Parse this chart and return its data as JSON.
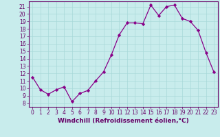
{
  "x": [
    0,
    1,
    2,
    3,
    4,
    5,
    6,
    7,
    8,
    9,
    10,
    11,
    12,
    13,
    14,
    15,
    16,
    17,
    18,
    19,
    20,
    21,
    22,
    23
  ],
  "y": [
    11.5,
    9.8,
    9.2,
    9.8,
    10.2,
    8.2,
    9.3,
    9.7,
    11.0,
    12.2,
    14.5,
    17.2,
    18.8,
    18.8,
    18.7,
    21.2,
    19.8,
    21.0,
    21.2,
    19.4,
    19.0,
    17.8,
    14.8,
    12.2
  ],
  "line_color": "#880088",
  "marker": "D",
  "markersize": 2.2,
  "linewidth": 0.9,
  "xlabel": "Windchill (Refroidissement éolien,°C)",
  "xlabel_fontsize": 6.5,
  "bg_color": "#c8ecec",
  "grid_color": "#a8d8d8",
  "xlim": [
    -0.5,
    23.5
  ],
  "ylim": [
    7.5,
    21.7
  ],
  "yticks": [
    8,
    9,
    10,
    11,
    12,
    13,
    14,
    15,
    16,
    17,
    18,
    19,
    20,
    21
  ],
  "xticks": [
    0,
    1,
    2,
    3,
    4,
    5,
    6,
    7,
    8,
    9,
    10,
    11,
    12,
    13,
    14,
    15,
    16,
    17,
    18,
    19,
    20,
    21,
    22,
    23
  ],
  "tick_fontsize": 5.5,
  "axis_color": "#660066",
  "spine_color": "#660066"
}
